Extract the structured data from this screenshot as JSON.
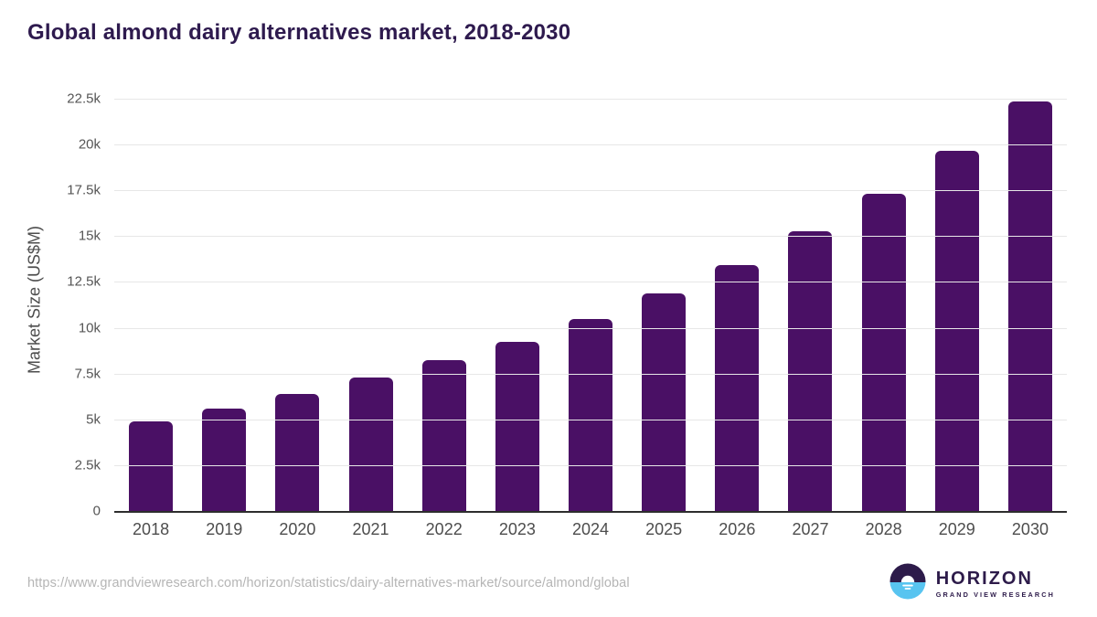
{
  "page": {
    "title": "Global almond dairy alternatives market, 2018-2030",
    "source_url": "https://www.grandviewresearch.com/horizon/statistics/dairy-alternatives-market/source/almond/global"
  },
  "brand": {
    "name": "HORIZON",
    "subtitle": "GRAND VIEW RESEARCH",
    "icon": "horizon-sun-over-water-icon",
    "colors": {
      "sky_purple": "#2d1b4a",
      "water_blue": "#58c4f0",
      "sun_white": "#ffffff",
      "text_purple": "#2d1b4a"
    }
  },
  "chart_data": {
    "type": "bar",
    "title": "Global almond dairy alternatives market, 2018-2030",
    "xlabel": "",
    "ylabel": "Market Size (US$M)",
    "categories": [
      "2018",
      "2019",
      "2020",
      "2021",
      "2022",
      "2023",
      "2024",
      "2025",
      "2026",
      "2027",
      "2028",
      "2029",
      "2030"
    ],
    "values": [
      4900,
      5570,
      6380,
      7280,
      8210,
      9240,
      10490,
      11860,
      13440,
      15260,
      17300,
      19650,
      22350
    ],
    "ylim": [
      0,
      22500
    ],
    "yticks": [
      {
        "value": 0,
        "label": "0"
      },
      {
        "value": 2500,
        "label": "2.5k"
      },
      {
        "value": 5000,
        "label": "5k"
      },
      {
        "value": 7500,
        "label": "7.5k"
      },
      {
        "value": 10000,
        "label": "10k"
      },
      {
        "value": 12500,
        "label": "12.5k"
      },
      {
        "value": 15000,
        "label": "15k"
      },
      {
        "value": 17500,
        "label": "17.5k"
      },
      {
        "value": 20000,
        "label": "20k"
      },
      {
        "value": 22500,
        "label": "22.5k"
      }
    ],
    "grid": "horizontal",
    "legend": "none",
    "colors": {
      "bar": "#4a1065",
      "title_text": "#2e1a4e",
      "axis_line": "#2d2d2d",
      "gridline": "#e7e7e7",
      "tick_text": "#555555",
      "x_label_text": "#4d4d4d",
      "url_text": "#b5b5b5"
    }
  }
}
